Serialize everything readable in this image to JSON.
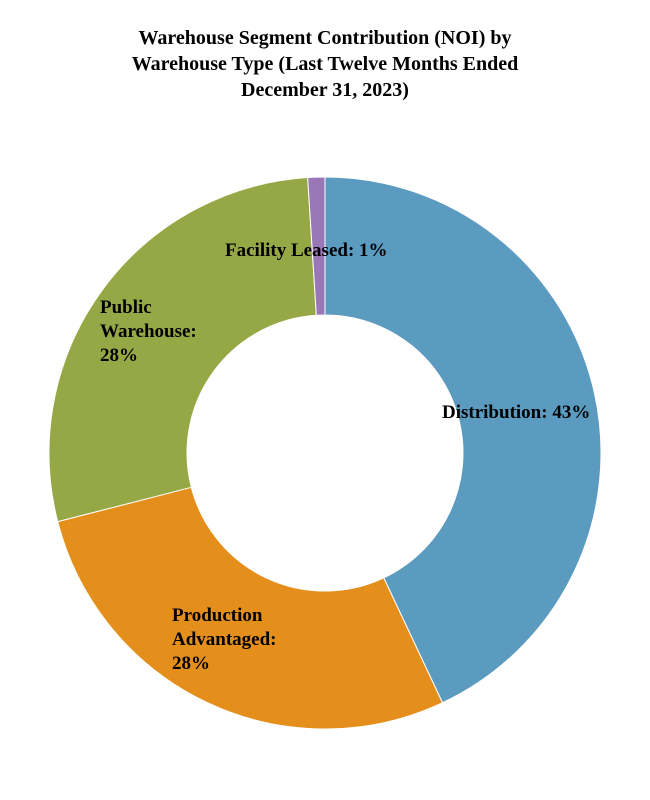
{
  "chart_data": {
    "type": "pie",
    "variant": "donut",
    "title_lines": [
      "Warehouse Segment Contribution (NOI) by",
      "Warehouse Type (Last Twelve Months Ended",
      "December 31, 2023)"
    ],
    "title": "Warehouse Segment Contribution (NOI) by Warehouse Type (Last Twelve Months Ended December 31, 2023)",
    "slices": [
      {
        "name": "Distribution",
        "value": 43,
        "color": "#5B9BC0",
        "label_lines": [
          "Distribution: 43%"
        ]
      },
      {
        "name": "Production Advantaged",
        "value": 28,
        "color": "#E48F1B",
        "label_lines": [
          "Production",
          "Advantaged:",
          "28%"
        ]
      },
      {
        "name": "Public Warehouse",
        "value": 28,
        "color": "#96A846",
        "label_lines": [
          "Public",
          "Warehouse:",
          "28%"
        ]
      },
      {
        "name": "Facility Leased",
        "value": 1,
        "color": "#9A78B8",
        "label_lines": [
          "Facility Leased: 1%"
        ]
      }
    ],
    "legend": "none"
  }
}
